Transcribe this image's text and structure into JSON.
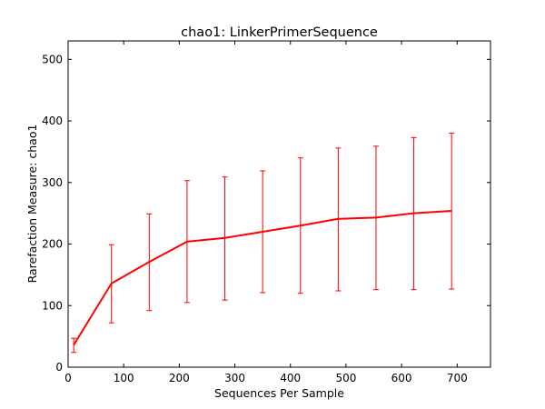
{
  "chart_data": {
    "type": "line",
    "title": "chao1: LinkerPrimerSequence",
    "xlabel": "Sequences Per Sample",
    "ylabel": "Rarefaction Measure: chao1",
    "xlim": [
      0,
      760
    ],
    "ylim": [
      0,
      530
    ],
    "xticks": [
      0,
      100,
      200,
      300,
      400,
      500,
      600,
      700
    ],
    "yticks": [
      0,
      100,
      200,
      300,
      400,
      500
    ],
    "grid": false,
    "colors": {
      "series": "#ff0000",
      "frame": "#000000"
    },
    "series": [
      {
        "x": [
          10,
          78,
          146,
          214,
          282,
          350,
          418,
          486,
          554,
          622,
          690
        ],
        "y": [
          36,
          136,
          171,
          204,
          210,
          220,
          230,
          241,
          243,
          250,
          254
        ],
        "err_low": [
          24,
          72,
          92,
          105,
          109,
          121,
          120,
          124,
          126,
          126,
          127
        ],
        "err_high": [
          47,
          199,
          249,
          303,
          309,
          319,
          340,
          356,
          359,
          373,
          380
        ]
      }
    ]
  }
}
